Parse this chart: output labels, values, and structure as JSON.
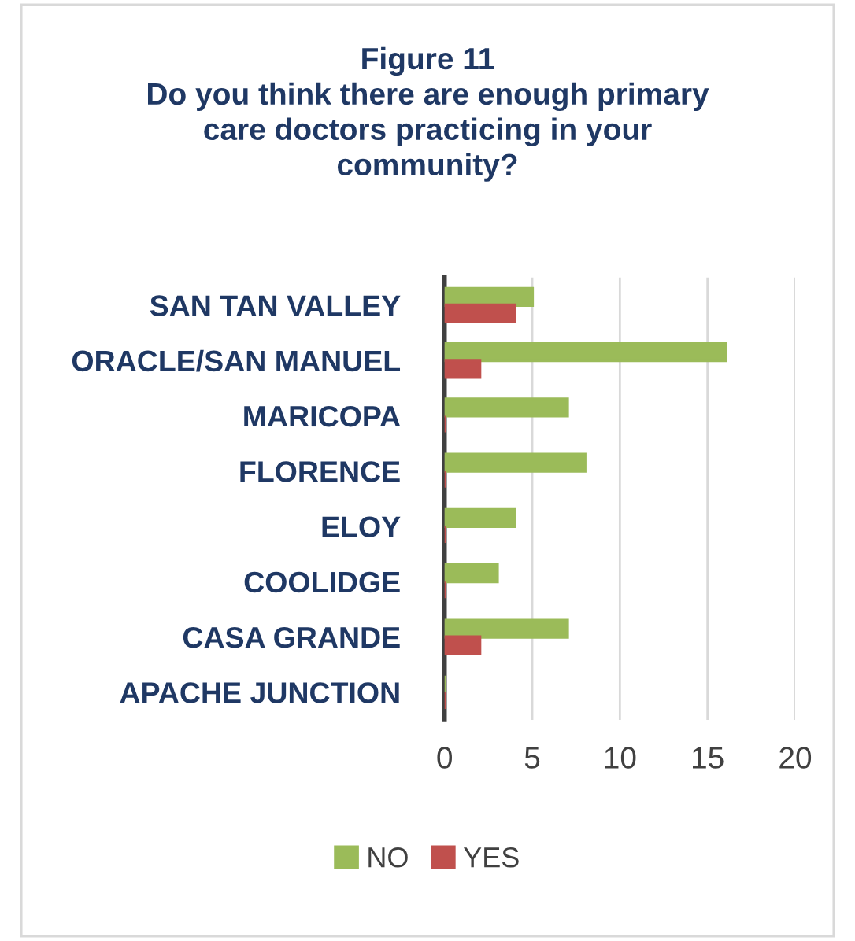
{
  "chart_data": {
    "type": "bar",
    "orientation": "horizontal",
    "title": "Figure 11\nDo you think there are enough primary\ncare doctors practicing in your\ncommunity?",
    "categories": [
      "SAN TAN VALLEY",
      "ORACLE/SAN MANUEL",
      "MARICOPA",
      "FLORENCE",
      "ELOY",
      "COOLIDGE",
      "CASA GRANDE",
      "APACHE JUNCTION"
    ],
    "series": [
      {
        "name": "NO",
        "color": "#9bbb59",
        "values": [
          5,
          16,
          7,
          8,
          4,
          3,
          7,
          0
        ]
      },
      {
        "name": "YES",
        "color": "#c0504d",
        "values": [
          4,
          2,
          0,
          0,
          0,
          0,
          2,
          0
        ]
      }
    ],
    "xlim": [
      0,
      20
    ],
    "xticks": [
      0,
      5,
      10,
      15,
      20
    ],
    "grid": "x",
    "legend": "bottom"
  }
}
